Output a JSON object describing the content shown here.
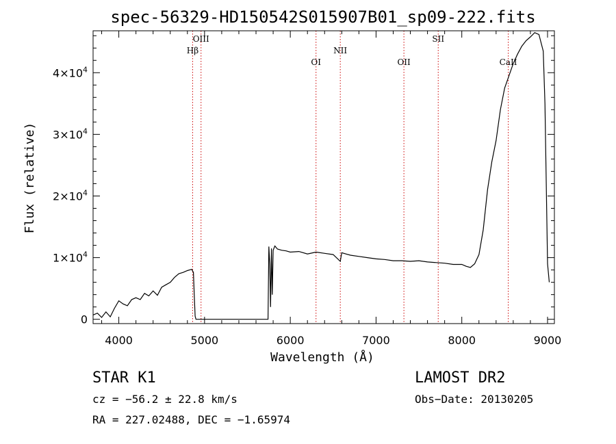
{
  "chart_data": {
    "type": "line",
    "title": "spec-56329-HD150542S015907B01_sp09-222.fits",
    "xlabel": "Wavelength (Å)",
    "ylabel": "Flux (relative)",
    "xlim": [
      3700,
      9080
    ],
    "ylim": [
      -700,
      46800
    ],
    "x_ticks": [
      4000,
      5000,
      6000,
      7000,
      8000,
      9000
    ],
    "y_ticks": [
      {
        "value": 0,
        "mantissa": "0",
        "exp": ""
      },
      {
        "value": 10000,
        "mantissa": "1×10",
        "exp": "4"
      },
      {
        "value": 20000,
        "mantissa": "2×10",
        "exp": "4"
      },
      {
        "value": 30000,
        "mantissa": "3×10",
        "exp": "4"
      },
      {
        "value": 40000,
        "mantissa": "4×10",
        "exp": "4"
      }
    ],
    "spectral_lines": [
      {
        "label": "Hβ",
        "wavelength": 4861,
        "level": "low"
      },
      {
        "label": "OIII",
        "wavelength": 4959,
        "level": "high"
      },
      {
        "label": "OI",
        "wavelength": 6300,
        "level": "mid"
      },
      {
        "label": "NII",
        "wavelength": 6583,
        "level": "low-mid"
      },
      {
        "label": "OII",
        "wavelength": 7325,
        "level": "mid"
      },
      {
        "label": "SII",
        "wavelength": 7725,
        "level": "high"
      },
      {
        "label": "CaII",
        "wavelength": 8542,
        "level": "mid"
      }
    ],
    "line_color": "#000000",
    "marker_color": "#cc0000",
    "series": [
      {
        "x": [
          3700,
          3750,
          3800,
          3850,
          3900,
          3950,
          4000,
          4050,
          4100,
          4150,
          4200,
          4250,
          4300,
          4350,
          4400,
          4450,
          4500,
          4550,
          4600,
          4650,
          4700,
          4750,
          4800,
          4850,
          4870,
          4880,
          4890,
          4900,
          4920,
          5740,
          5750,
          5760,
          5770,
          5780,
          5790,
          5800,
          5820,
          5850,
          5900,
          5950,
          6000,
          6100,
          6200,
          6300,
          6400,
          6500,
          6583,
          6600,
          6700,
          6800,
          6900,
          7000,
          7100,
          7200,
          7300,
          7400,
          7500,
          7600,
          7700,
          7800,
          7900,
          8000,
          8050,
          8100,
          8150,
          8200,
          8250,
          8300,
          8350,
          8400,
          8450,
          8500,
          8550,
          8600,
          8650,
          8700,
          8750,
          8800,
          8850,
          8900,
          8950,
          8970,
          9000,
          9020
        ],
        "y": [
          700,
          1000,
          300,
          1200,
          400,
          1800,
          3000,
          2500,
          2200,
          3200,
          3500,
          3200,
          4200,
          3800,
          4600,
          3900,
          5200,
          5600,
          6000,
          6800,
          7400,
          7600,
          7900,
          8100,
          7600,
          4000,
          500,
          0,
          0,
          0,
          11800,
          9000,
          2000,
          11500,
          4000,
          11200,
          11900,
          11400,
          11200,
          11100,
          10900,
          11000,
          10600,
          10900,
          10700,
          10500,
          9400,
          10800,
          10400,
          10200,
          10000,
          9800,
          9700,
          9500,
          9500,
          9400,
          9500,
          9300,
          9200,
          9100,
          8900,
          8900,
          8600,
          8400,
          9000,
          10500,
          14500,
          21000,
          25500,
          29000,
          34000,
          37500,
          39500,
          41500,
          43000,
          44300,
          45200,
          45800,
          46500,
          46200,
          43500,
          35000,
          9000,
          6000
        ]
      }
    ]
  },
  "info": {
    "object": "STAR    K1",
    "survey": "LAMOST DR2",
    "cz": "cz = −56.2 ± 22.8 km/s",
    "obs_date": "Obs−Date: 20130205",
    "radec": "RA = 227.02488, DEC =  −1.65974"
  }
}
